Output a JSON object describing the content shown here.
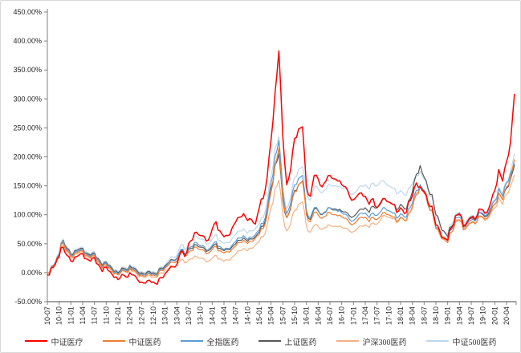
{
  "chart_data": {
    "type": "line",
    "title": "",
    "x_start": "2010-07",
    "x_end": "2020-06",
    "x_interval": "monthly",
    "x_tick_labels": [
      "10-07",
      "10-10",
      "11-01",
      "11-04",
      "11-07",
      "11-10",
      "12-01",
      "12-04",
      "12-07",
      "12-10",
      "13-01",
      "13-04",
      "13-07",
      "13-10",
      "14-01",
      "14-04",
      "14-07",
      "14-10",
      "15-01",
      "15-04",
      "15-07",
      "15-10",
      "16-01",
      "16-04",
      "16-07",
      "16-10",
      "17-01",
      "17-04",
      "17-07",
      "17-10",
      "18-01",
      "18-04",
      "18-07",
      "18-10",
      "19-01",
      "19-04",
      "19-07",
      "19-10",
      "20-01",
      "20-04"
    ],
    "y_tick_labels": [
      "450.00%",
      "400.00%",
      "350.00%",
      "300.00%",
      "250.00%",
      "200.00%",
      "150.00%",
      "100.00%",
      "50.00%",
      "0.00%",
      "-50.00%"
    ],
    "ylim": [
      -50,
      450
    ],
    "y_unit": "percent",
    "grid": false,
    "legend_position": "bottom",
    "axis_color": "#808080",
    "tick_label_color": "#262626",
    "series": [
      {
        "name": "中证医疗",
        "color": "#ff0000",
        "values": [
          -4,
          8,
          14,
          28,
          44,
          30,
          20,
          27,
          30,
          33,
          24,
          20,
          26,
          14,
          2,
          10,
          2,
          -8,
          -12,
          -3,
          -7,
          0,
          -4,
          -12,
          -16,
          -18,
          -13,
          -16,
          -20,
          -8,
          -2,
          6,
          10,
          14,
          36,
          28,
          50,
          57,
          70,
          64,
          62,
          56,
          75,
          88,
          72,
          62,
          64,
          76,
          88,
          96,
          102,
          90,
          92,
          84,
          112,
          128,
          165,
          230,
          310,
          383,
          235,
          152,
          178,
          232,
          248,
          252,
          148,
          132,
          168,
          162,
          148,
          158,
          168,
          162,
          158,
          152,
          148,
          132,
          126,
          133,
          138,
          132,
          118,
          128,
          112,
          122,
          128,
          122,
          118,
          104,
          112,
          102,
          122,
          132,
          155,
          148,
          140,
          120,
          115,
          82,
          72,
          60,
          56,
          78,
          98,
          102,
          80,
          88,
          96,
          92,
          110,
          108,
          104,
          122,
          142,
          178,
          158,
          192,
          225,
          308
        ]
      },
      {
        "name": "中证医药",
        "color": "#ed7d31",
        "values": [
          0,
          10,
          16,
          30,
          52,
          38,
          28,
          34,
          36,
          38,
          30,
          26,
          30,
          20,
          8,
          14,
          8,
          -2,
          -4,
          4,
          2,
          8,
          4,
          -2,
          -4,
          -6,
          -2,
          -4,
          -6,
          4,
          8,
          14,
          18,
          20,
          34,
          28,
          36,
          38,
          44,
          40,
          38,
          34,
          40,
          46,
          38,
          34,
          36,
          40,
          46,
          52,
          56,
          50,
          54,
          60,
          66,
          76,
          100,
          140,
          185,
          215,
          130,
          95,
          110,
          140,
          152,
          158,
          100,
          88,
          104,
          100,
          94,
          98,
          104,
          100,
          98,
          96,
          94,
          86,
          84,
          90,
          96,
          96,
          88,
          96,
          92,
          98,
          104,
          100,
          96,
          88,
          96,
          90,
          102,
          112,
          135,
          148,
          138,
          118,
          108,
          76,
          66,
          58,
          52,
          70,
          88,
          90,
          74,
          80,
          86,
          84,
          98,
          96,
          94,
          106,
          118,
          138,
          126,
          148,
          165,
          195
        ]
      },
      {
        "name": "全指医药",
        "color": "#5b9bd5",
        "values": [
          0,
          11,
          17,
          32,
          55,
          40,
          30,
          36,
          38,
          40,
          32,
          28,
          32,
          22,
          10,
          16,
          10,
          0,
          -2,
          6,
          4,
          10,
          6,
          0,
          -2,
          -4,
          0,
          -2,
          -4,
          6,
          10,
          17,
          21,
          24,
          40,
          33,
          42,
          45,
          52,
          47,
          45,
          40,
          47,
          54,
          45,
          40,
          42,
          47,
          54,
          60,
          64,
          57,
          61,
          66,
          74,
          85,
          112,
          155,
          200,
          228,
          140,
          102,
          120,
          152,
          163,
          168,
          108,
          95,
          112,
          108,
          101,
          106,
          112,
          108,
          106,
          103,
          101,
          92,
          90,
          97,
          103,
          103,
          95,
          103,
          99,
          106,
          112,
          107,
          103,
          94,
          102,
          96,
          110,
          120,
          142,
          152,
          142,
          116,
          108,
          78,
          68,
          60,
          56,
          75,
          94,
          96,
          78,
          85,
          91,
          89,
          104,
          102,
          100,
          112,
          124,
          145,
          132,
          155,
          172,
          188
        ]
      },
      {
        "name": "上证医药",
        "color": "#595959",
        "values": [
          0,
          10,
          15,
          28,
          56,
          42,
          32,
          38,
          40,
          42,
          34,
          30,
          34,
          24,
          12,
          18,
          12,
          2,
          0,
          8,
          6,
          12,
          8,
          2,
          0,
          -2,
          2,
          0,
          -2,
          8,
          12,
          18,
          22,
          25,
          38,
          32,
          40,
          42,
          48,
          44,
          42,
          38,
          44,
          50,
          42,
          38,
          40,
          44,
          50,
          56,
          60,
          54,
          58,
          62,
          70,
          80,
          105,
          145,
          185,
          205,
          125,
          95,
          112,
          142,
          152,
          158,
          105,
          92,
          110,
          107,
          100,
          105,
          112,
          110,
          108,
          106,
          105,
          98,
          97,
          104,
          110,
          112,
          104,
          115,
          112,
          120,
          128,
          122,
          118,
          108,
          118,
          110,
          124,
          140,
          170,
          185,
          165,
          145,
          135,
          100,
          85,
          72,
          62,
          80,
          98,
          100,
          82,
          88,
          94,
          90,
          104,
          100,
          98,
          108,
          118,
          138,
          126,
          146,
          162,
          185
        ]
      },
      {
        "name": "沪深300医药",
        "color": "#f4b183",
        "values": [
          0,
          9,
          14,
          26,
          48,
          36,
          26,
          32,
          34,
          36,
          28,
          24,
          28,
          18,
          8,
          13,
          7,
          -2,
          -4,
          3,
          1,
          6,
          2,
          -4,
          -6,
          -8,
          -5,
          -7,
          -8,
          0,
          3,
          8,
          11,
          13,
          22,
          17,
          22,
          24,
          28,
          25,
          23,
          20,
          25,
          30,
          24,
          20,
          22,
          26,
          32,
          38,
          42,
          38,
          42,
          48,
          54,
          62,
          82,
          112,
          145,
          160,
          100,
          72,
          85,
          108,
          118,
          122,
          80,
          70,
          82,
          80,
          75,
          78,
          82,
          80,
          79,
          78,
          77,
          72,
          71,
          76,
          81,
          83,
          78,
          86,
          84,
          92,
          99,
          96,
          93,
          86,
          95,
          90,
          102,
          115,
          138,
          152,
          142,
          124,
          114,
          82,
          72,
          62,
          58,
          74,
          90,
          92,
          76,
          82,
          88,
          85,
          97,
          94,
          92,
          102,
          112,
          130,
          118,
          136,
          150,
          168
        ]
      },
      {
        "name": "中证500医药",
        "color": "#bdd7ee",
        "values": [
          0,
          12,
          18,
          34,
          58,
          44,
          34,
          40,
          42,
          44,
          36,
          32,
          36,
          26,
          14,
          20,
          14,
          4,
          2,
          10,
          8,
          14,
          10,
          4,
          2,
          0,
          4,
          2,
          0,
          10,
          14,
          22,
          27,
          30,
          48,
          40,
          52,
          56,
          63,
          58,
          56,
          50,
          58,
          66,
          56,
          50,
          52,
          58,
          66,
          72,
          76,
          68,
          72,
          76,
          84,
          95,
          124,
          168,
          215,
          235,
          148,
          110,
          130,
          165,
          178,
          183,
          140,
          125,
          148,
          145,
          138,
          144,
          152,
          150,
          148,
          146,
          145,
          138,
          136,
          143,
          150,
          152,
          144,
          155,
          150,
          158,
          156,
          150,
          146,
          136,
          142,
          134,
          146,
          154,
          168,
          175,
          162,
          142,
          132,
          96,
          82,
          72,
          66,
          84,
          102,
          104,
          86,
          92,
          98,
          95,
          108,
          105,
          103,
          114,
          126,
          148,
          136,
          158,
          175,
          205
        ]
      }
    ]
  }
}
